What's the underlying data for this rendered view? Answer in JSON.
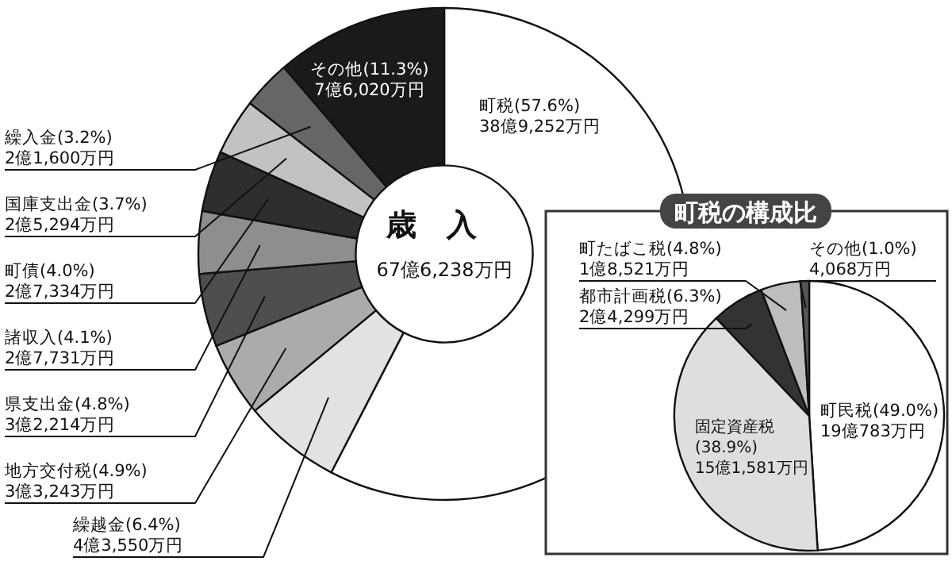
{
  "chart_data": [
    {
      "type": "donut",
      "title": "歳　入",
      "subtitle": "67億6,238万円",
      "categories": [
        "町税",
        "繰越金",
        "地方交付税",
        "県支出金",
        "諸収入",
        "町債",
        "国庫支出金",
        "繰入金",
        "その他"
      ],
      "values": [
        57.6,
        6.4,
        4.9,
        4.8,
        4.1,
        4.0,
        3.7,
        3.2,
        11.3
      ],
      "value_labels": [
        "(57.6%)\n38億9,252万円",
        "(6.4%)\n4億3,550万円",
        "(4.9%)\n3億3,243万円",
        "(4.8%)\n3億2,214万円",
        "(4.1%)\n2億7,731万円",
        "(4.0%)\n2億7,334万円",
        "(3.7%)\n2億5,294万円",
        "(3.2%)\n2億1,600万円",
        "(11.3%)\n7億6,020万円"
      ],
      "colors": [
        "#ffffff",
        "#e2e2e2",
        "#ababab",
        "#4e4e4e",
        "#8e8e8e",
        "#2e2e2e",
        "#c2c2c2",
        "#666666",
        "#1a1a1a"
      ]
    },
    {
      "type": "pie",
      "title": "町税の構成比",
      "categories": [
        "町民税",
        "固定資産税",
        "都市計画税",
        "町たばこ税",
        "その他"
      ],
      "values": [
        49.0,
        38.9,
        6.3,
        4.8,
        1.0
      ],
      "value_labels": [
        "(49.0%)\n19億783万円",
        "\n(38.9%)\n15億1,581万円",
        "(6.3%)\n2億4,299万円",
        "(4.8%)\n1億8,521万円",
        "(1.0%)\n4,068万円"
      ],
      "colors": [
        "#ffffff",
        "#dedede",
        "#333333",
        "#bdbdbd",
        "#555555"
      ]
    }
  ]
}
